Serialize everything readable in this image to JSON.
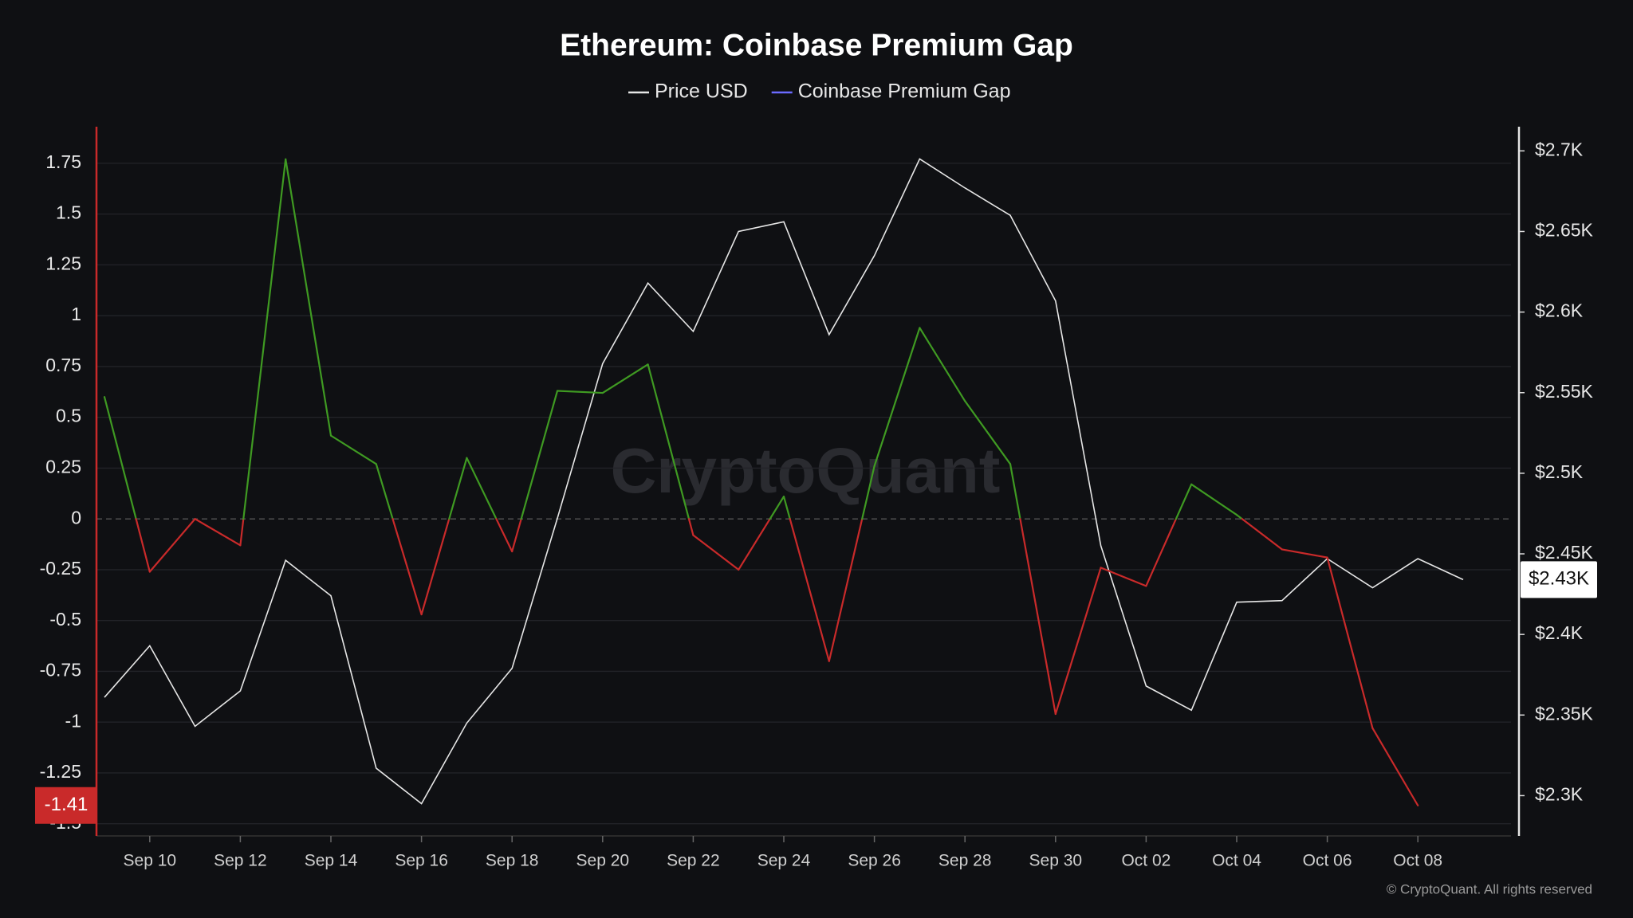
{
  "chart_data": {
    "type": "line",
    "title": "Ethereum: Coinbase Premium Gap",
    "watermark": "CryptoQuant",
    "copyright": "© CryptoQuant. All rights reserved",
    "categories": [
      null,
      "Sep 10",
      null,
      "Sep 12",
      null,
      "Sep 14",
      null,
      "Sep 16",
      null,
      "Sep 18",
      null,
      "Sep 20",
      null,
      "Sep 22",
      null,
      "Sep 24",
      null,
      "Sep 26",
      null,
      "Sep 28",
      null,
      "Sep 30",
      null,
      "Oct 02",
      null,
      "Oct 04",
      null,
      "Oct 06",
      null,
      "Oct 08",
      null
    ],
    "series": [
      {
        "name": "Price USD",
        "color": "#e6e6e6",
        "axis": "y2",
        "values": [
          2361,
          2393,
          2343,
          2365,
          2446,
          2424,
          2317,
          2295,
          2345,
          2379,
          2472,
          2568,
          2618,
          2588,
          2650,
          2656,
          2586,
          2635,
          2695,
          2677,
          2660,
          2607,
          2455,
          2368,
          2353,
          2420,
          2421,
          2447,
          2429,
          2447,
          2434
        ],
        "last_label": "$2.43K"
      },
      {
        "name": "Coinbase Premium Gap",
        "color": "#6b6bff",
        "positive_color": "#3f9a22",
        "negative_color": "#c92a2a",
        "values": [
          0.6,
          -0.26,
          0.0,
          -0.13,
          1.77,
          0.41,
          0.27,
          -0.47,
          0.3,
          -0.16,
          0.63,
          0.62,
          0.76,
          -0.08,
          -0.25,
          0.11,
          -0.7,
          0.26,
          0.94,
          0.58,
          0.27,
          -0.96,
          -0.24,
          -0.33,
          0.17,
          0.02,
          -0.15,
          -0.19,
          -1.03,
          -1.41,
          null
        ]
      }
    ],
    "ylim": [
      -1.56,
      1.93
    ],
    "yticks": [
      -1.5,
      -1.25,
      -1,
      -0.75,
      -0.5,
      -0.25,
      0,
      0.25,
      0.5,
      0.75,
      1,
      1.25,
      1.5,
      1.75
    ],
    "y2lim": [
      2275,
      2715
    ],
    "y2ticks": [
      {
        "value": 2300,
        "label": "$2.3K"
      },
      {
        "value": 2350,
        "label": "$2.35K"
      },
      {
        "value": 2400,
        "label": "$2.4K"
      },
      {
        "value": 2450,
        "label": "$2.45K"
      },
      {
        "value": 2500,
        "label": "$2.5K"
      },
      {
        "value": 2550,
        "label": "$2.55K"
      },
      {
        "value": 2600,
        "label": "$2.6K"
      },
      {
        "value": 2650,
        "label": "$2.65K"
      },
      {
        "value": 2700,
        "label": "$2.7K"
      }
    ],
    "grid": true,
    "legend": "top"
  }
}
